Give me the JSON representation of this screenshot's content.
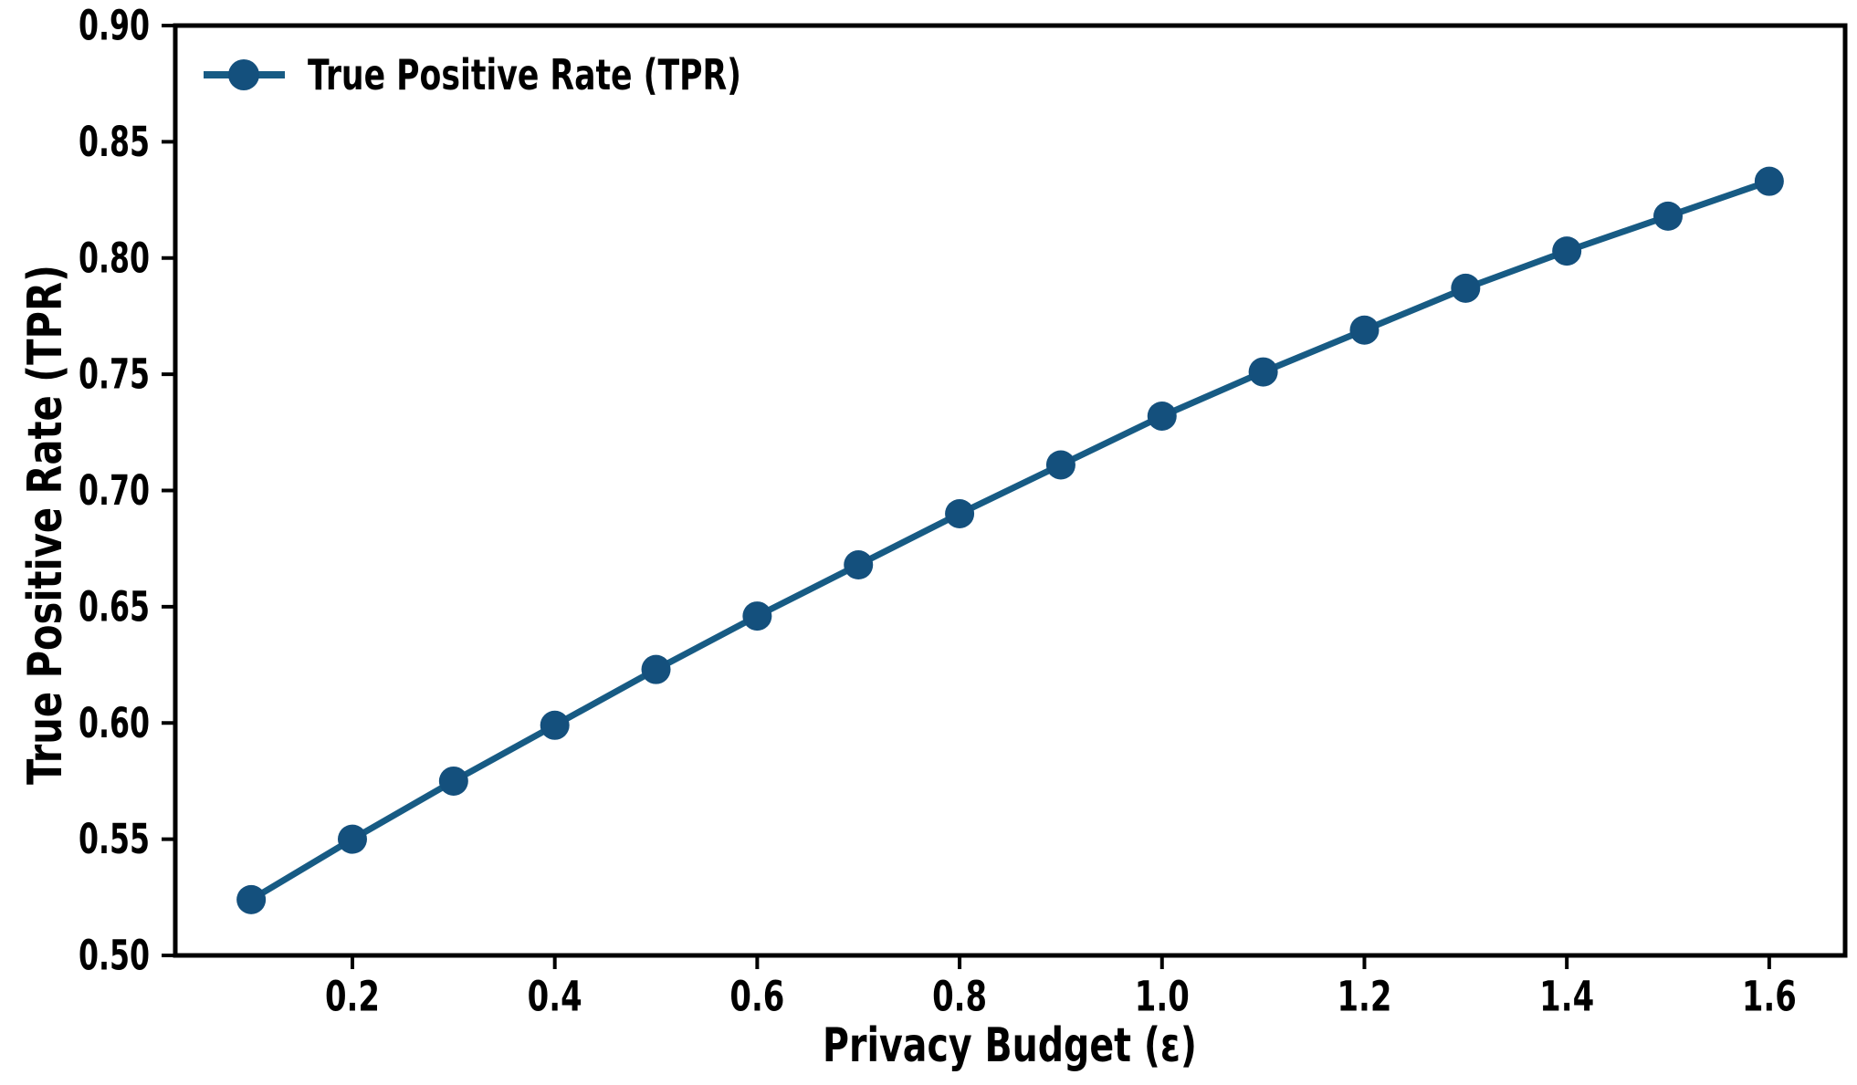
{
  "chart_data": {
    "type": "line",
    "title": "",
    "xlabel": "Privacy Budget (ε)",
    "ylabel": "True Positive Rate (TPR)",
    "xlim": [
      0.025,
      1.675
    ],
    "ylim": [
      0.5,
      0.9
    ],
    "grid": false,
    "x_ticks": [
      0.2,
      0.4,
      0.6,
      0.8,
      1.0,
      1.2,
      1.4,
      1.6
    ],
    "x_tick_labels": [
      "0.2",
      "0.4",
      "0.6",
      "0.8",
      "1.0",
      "1.2",
      "1.4",
      "1.6"
    ],
    "y_ticks": [
      0.5,
      0.55,
      0.6,
      0.65,
      0.7,
      0.75,
      0.8,
      0.85,
      0.9
    ],
    "y_tick_labels": [
      "0.50",
      "0.55",
      "0.60",
      "0.65",
      "0.70",
      "0.75",
      "0.80",
      "0.85",
      "0.90"
    ],
    "legend": {
      "position": "upper-left",
      "frame": false,
      "entries": [
        {
          "label": "True Positive Rate (TPR)",
          "marker": "circle",
          "color": "#14507d"
        }
      ]
    },
    "series": [
      {
        "name": "True Positive Rate (TPR)",
        "marker": "circle",
        "color": "#14507d",
        "line_color": "#175b84",
        "x": [
          0.1,
          0.2,
          0.3,
          0.4,
          0.5,
          0.6,
          0.7,
          0.8,
          0.9,
          1.0,
          1.1,
          1.2,
          1.3,
          1.4,
          1.5,
          1.6
        ],
        "y": [
          0.524,
          0.55,
          0.575,
          0.599,
          0.623,
          0.646,
          0.668,
          0.69,
          0.711,
          0.732,
          0.751,
          0.769,
          0.787,
          0.803,
          0.818,
          0.833
        ]
      }
    ]
  },
  "colors": {
    "background": "#ffffff",
    "axis": "#000000",
    "text": "#000000"
  }
}
